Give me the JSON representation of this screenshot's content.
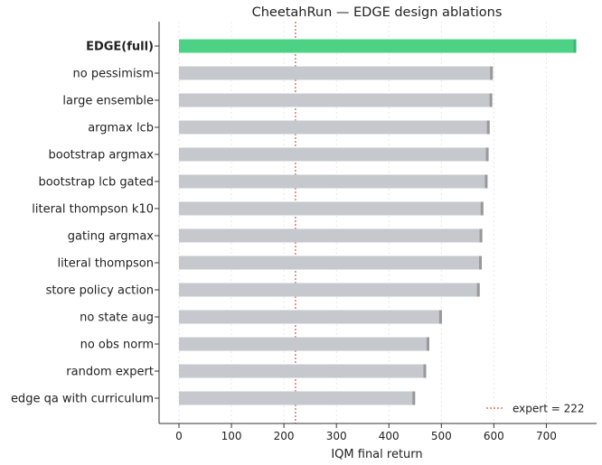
{
  "chart_data": {
    "type": "bar",
    "orientation": "horizontal",
    "title": "CheetahRun — EDGE design ablations",
    "xlabel": "IQM final return",
    "ylabel": "",
    "xlim": [
      -38,
      785
    ],
    "xticks": [
      0,
      100,
      200,
      300,
      400,
      500,
      600,
      700
    ],
    "grid": "vertical dotted",
    "legend_position": "bottom-right",
    "categories": [
      "EDGE(full)",
      "no pessimism",
      "large ensemble",
      "argmax lcb",
      "bootstrap argmax",
      "bootstrap lcb gated",
      "literal thompson k10",
      "gating argmax",
      "literal thompson",
      "store policy action",
      "no state aug",
      "no obs norm",
      "random expert",
      "edge qa with curriculum"
    ],
    "values": [
      757,
      598,
      597,
      592,
      590,
      588,
      580,
      578,
      577,
      573,
      501,
      477,
      471,
      450
    ],
    "highlight_index": 0,
    "colors": {
      "highlight": "#4cd185",
      "bar": "#c5c8cc",
      "bar_cap": "#999999",
      "reference_line": "#d9534f"
    },
    "reference_line": {
      "value": 222,
      "label": "expert = 222"
    }
  }
}
